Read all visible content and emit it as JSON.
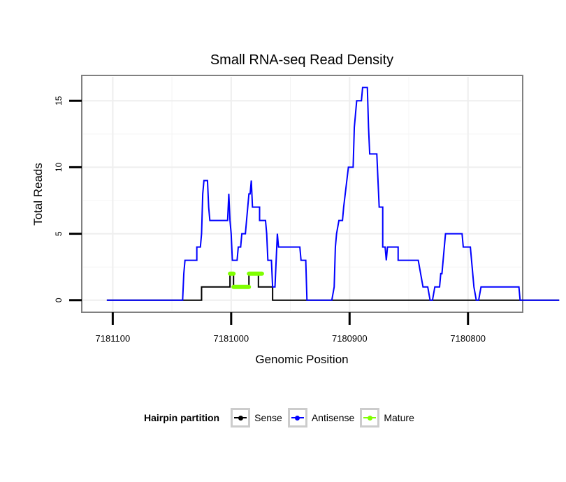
{
  "chart_data": {
    "type": "line",
    "title": "Small RNA-seq Read Density",
    "xlabel": "Genomic Position",
    "ylabel": "Total Reads",
    "x_reversed": true,
    "xlim": [
      7181125,
      7180755
    ],
    "ylim": [
      -0.8,
      16.8
    ],
    "xticks": [
      7181100,
      7181000,
      7180900,
      7180800
    ],
    "yticks": [
      0,
      5,
      10,
      15
    ],
    "grid": true,
    "series": [
      {
        "name": "Sense",
        "color": "#000000",
        "points": [
          [
            7181105,
            0
          ],
          [
            7181025,
            0
          ],
          [
            7181025,
            1
          ],
          [
            7181001,
            1
          ],
          [
            7181001,
            2
          ],
          [
            7180998,
            2
          ],
          [
            7180998,
            1
          ],
          [
            7180985,
            1
          ],
          [
            7180985,
            2
          ],
          [
            7180977,
            2
          ],
          [
            7180977,
            1
          ],
          [
            7180965,
            1
          ],
          [
            7180965,
            0
          ],
          [
            7180723,
            0
          ]
        ]
      },
      {
        "name": "Antisense",
        "color": "#0000ff",
        "points": [
          [
            7181105,
            0
          ],
          [
            7181041,
            0
          ],
          [
            7181040,
            2
          ],
          [
            7181039,
            3
          ],
          [
            7181029,
            3
          ],
          [
            7181029,
            4
          ],
          [
            7181026,
            4
          ],
          [
            7181025,
            5
          ],
          [
            7181024,
            8
          ],
          [
            7181023,
            9
          ],
          [
            7181020,
            9
          ],
          [
            7181019,
            7
          ],
          [
            7181018,
            6
          ],
          [
            7181003,
            6
          ],
          [
            7181002,
            8
          ],
          [
            7181001,
            6
          ],
          [
            7181000,
            5
          ],
          [
            7180999,
            3
          ],
          [
            7180995,
            3
          ],
          [
            7180994,
            4
          ],
          [
            7180992,
            4
          ],
          [
            7180991,
            5
          ],
          [
            7180988,
            5
          ],
          [
            7180987,
            6
          ],
          [
            7180986,
            7
          ],
          [
            7180985,
            8
          ],
          [
            7180984,
            8
          ],
          [
            7180983,
            9
          ],
          [
            7180982,
            7
          ],
          [
            7180976,
            7
          ],
          [
            7180976,
            6
          ],
          [
            7180971,
            6
          ],
          [
            7180970,
            5
          ],
          [
            7180969,
            3
          ],
          [
            7180966,
            3
          ],
          [
            7180965,
            1
          ],
          [
            7180963,
            1
          ],
          [
            7180962,
            3
          ],
          [
            7180961,
            5
          ],
          [
            7180960,
            4
          ],
          [
            7180942,
            4
          ],
          [
            7180941,
            3
          ],
          [
            7180937,
            3
          ],
          [
            7180936,
            0
          ],
          [
            7180915,
            0
          ],
          [
            7180913,
            1
          ],
          [
            7180912,
            4
          ],
          [
            7180911,
            5
          ],
          [
            7180909,
            6
          ],
          [
            7180906,
            6
          ],
          [
            7180905,
            7
          ],
          [
            7180901,
            10
          ],
          [
            7180897,
            10
          ],
          [
            7180896,
            13
          ],
          [
            7180895,
            14
          ],
          [
            7180894,
            15
          ],
          [
            7180890,
            15
          ],
          [
            7180889,
            16
          ],
          [
            7180885,
            16
          ],
          [
            7180884,
            13
          ],
          [
            7180883,
            11
          ],
          [
            7180877,
            11
          ],
          [
            7180876,
            9
          ],
          [
            7180875,
            7
          ],
          [
            7180872,
            7
          ],
          [
            7180872,
            4
          ],
          [
            7180870,
            4
          ],
          [
            7180869,
            3
          ],
          [
            7180868,
            4
          ],
          [
            7180859,
            4
          ],
          [
            7180859,
            3
          ],
          [
            7180842,
            3
          ],
          [
            7180838,
            1
          ],
          [
            7180834,
            1
          ],
          [
            7180832,
            0
          ],
          [
            7180830,
            0
          ],
          [
            7180828,
            1
          ],
          [
            7180824,
            1
          ],
          [
            7180823,
            2
          ],
          [
            7180822,
            2
          ],
          [
            7180821,
            3
          ],
          [
            7180820,
            4
          ],
          [
            7180819,
            5
          ],
          [
            7180805,
            5
          ],
          [
            7180804,
            4
          ],
          [
            7180798,
            4
          ],
          [
            7180796,
            2
          ],
          [
            7180795,
            1
          ],
          [
            7180793,
            0
          ],
          [
            7180791,
            0
          ],
          [
            7180789,
            1
          ],
          [
            7180757,
            1
          ],
          [
            7180756,
            0
          ],
          [
            7180723,
            0
          ]
        ]
      },
      {
        "name": "Mature",
        "color": "#7fff00",
        "points": [
          [
            7181001,
            2
          ],
          [
            7180998,
            2
          ],
          null,
          [
            7180998,
            1
          ],
          [
            7180985,
            1
          ],
          null,
          [
            7180985,
            2
          ],
          [
            7180974,
            2
          ]
        ]
      }
    ]
  },
  "legend": {
    "title": "Hairpin partition",
    "items": [
      {
        "label": "Sense",
        "color": "#000000"
      },
      {
        "label": "Antisense",
        "color": "#0000ff"
      },
      {
        "label": "Mature",
        "color": "#7fff00"
      }
    ]
  }
}
